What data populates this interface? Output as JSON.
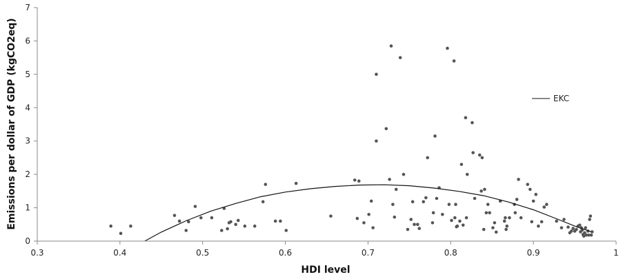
{
  "chart_data": {
    "type": "scatter",
    "title": "",
    "xlabel": "HDI level",
    "ylabel": "Emissions per dollar of GDP (kgCO2eq)",
    "xlim": [
      0.3,
      1.0
    ],
    "ylim": [
      0,
      7
    ],
    "xticks": [
      0.3,
      0.4,
      0.5,
      0.6,
      0.7,
      0.8,
      0.9,
      1.0
    ],
    "xtick_labels": [
      "0.3",
      "0.4",
      "0.5",
      "0.6",
      "0.7",
      "0.8",
      "0.9",
      "1"
    ],
    "yticks": [
      0,
      1,
      2,
      3,
      4,
      5,
      6,
      7
    ],
    "ytick_labels": [
      "0",
      "1",
      "2",
      "3",
      "4",
      "5",
      "6",
      "7"
    ],
    "grid": false,
    "legend": {
      "placement": "right",
      "entries": [
        "EKC"
      ]
    },
    "series": [
      {
        "name": "",
        "kind": "scatter",
        "color": "#555555",
        "points": [
          [
            0.389,
            0.45
          ],
          [
            0.401,
            0.23
          ],
          [
            0.413,
            0.45
          ],
          [
            0.466,
            0.77
          ],
          [
            0.472,
            0.6
          ],
          [
            0.48,
            0.32
          ],
          [
            0.483,
            0.58
          ],
          [
            0.491,
            1.04
          ],
          [
            0.498,
            0.7
          ],
          [
            0.511,
            0.7
          ],
          [
            0.523,
            0.32
          ],
          [
            0.526,
            0.98
          ],
          [
            0.53,
            0.37
          ],
          [
            0.532,
            0.55
          ],
          [
            0.534,
            0.58
          ],
          [
            0.54,
            0.5
          ],
          [
            0.543,
            0.62
          ],
          [
            0.551,
            0.45
          ],
          [
            0.563,
            0.45
          ],
          [
            0.573,
            1.18
          ],
          [
            0.576,
            1.7
          ],
          [
            0.588,
            0.6
          ],
          [
            0.594,
            0.6
          ],
          [
            0.601,
            0.32
          ],
          [
            0.613,
            1.73
          ],
          [
            0.655,
            0.75
          ],
          [
            0.684,
            1.83
          ],
          [
            0.687,
            0.68
          ],
          [
            0.689,
            1.8
          ],
          [
            0.695,
            0.55
          ],
          [
            0.701,
            0.8
          ],
          [
            0.704,
            1.2
          ],
          [
            0.706,
            0.4
          ],
          [
            0.71,
            5.0
          ],
          [
            0.71,
            3.0
          ],
          [
            0.722,
            3.37
          ],
          [
            0.726,
            1.85
          ],
          [
            0.728,
            5.85
          ],
          [
            0.73,
            1.1
          ],
          [
            0.732,
            0.72
          ],
          [
            0.734,
            1.55
          ],
          [
            0.739,
            5.5
          ],
          [
            0.743,
            2.0
          ],
          [
            0.748,
            0.35
          ],
          [
            0.752,
            0.65
          ],
          [
            0.754,
            1.18
          ],
          [
            0.756,
            0.5
          ],
          [
            0.76,
            0.5
          ],
          [
            0.762,
            0.38
          ],
          [
            0.767,
            1.18
          ],
          [
            0.77,
            1.3
          ],
          [
            0.772,
            2.5
          ],
          [
            0.778,
            0.55
          ],
          [
            0.779,
            0.85
          ],
          [
            0.781,
            3.15
          ],
          [
            0.783,
            1.28
          ],
          [
            0.786,
            1.6
          ],
          [
            0.79,
            0.8
          ],
          [
            0.796,
            5.78
          ],
          [
            0.798,
            1.1
          ],
          [
            0.801,
            0.62
          ],
          [
            0.804,
            5.4
          ],
          [
            0.805,
            0.7
          ],
          [
            0.806,
            1.1
          ],
          [
            0.807,
            0.43
          ],
          [
            0.808,
            0.45
          ],
          [
            0.811,
            0.6
          ],
          [
            0.813,
            2.3
          ],
          [
            0.815,
            0.48
          ],
          [
            0.818,
            3.7
          ],
          [
            0.819,
            0.7
          ],
          [
            0.82,
            2.0
          ],
          [
            0.826,
            3.55
          ],
          [
            0.827,
            2.65
          ],
          [
            0.829,
            1.28
          ],
          [
            0.835,
            2.58
          ],
          [
            0.837,
            1.5
          ],
          [
            0.838,
            2.5
          ],
          [
            0.84,
            0.35
          ],
          [
            0.841,
            1.55
          ],
          [
            0.843,
            0.85
          ],
          [
            0.845,
            1.1
          ],
          [
            0.847,
            0.85
          ],
          [
            0.851,
            0.4
          ],
          [
            0.853,
            0.55
          ],
          [
            0.855,
            0.27
          ],
          [
            0.86,
            1.2
          ],
          [
            0.865,
            0.6
          ],
          [
            0.866,
            0.7
          ],
          [
            0.867,
            0.35
          ],
          [
            0.868,
            0.45
          ],
          [
            0.871,
            0.7
          ],
          [
            0.877,
            1.1
          ],
          [
            0.878,
            0.85
          ],
          [
            0.88,
            1.25
          ],
          [
            0.882,
            1.85
          ],
          [
            0.885,
            0.7
          ],
          [
            0.893,
            1.7
          ],
          [
            0.896,
            1.55
          ],
          [
            0.898,
            0.58
          ],
          [
            0.9,
            1.2
          ],
          [
            0.903,
            1.4
          ],
          [
            0.906,
            0.45
          ],
          [
            0.91,
            0.58
          ],
          [
            0.913,
            1.02
          ],
          [
            0.916,
            1.1
          ],
          [
            0.928,
            0.6
          ],
          [
            0.934,
            0.4
          ],
          [
            0.937,
            0.65
          ],
          [
            0.942,
            0.42
          ],
          [
            0.944,
            0.25
          ],
          [
            0.946,
            0.3
          ],
          [
            0.948,
            0.38
          ],
          [
            0.95,
            0.3
          ],
          [
            0.952,
            0.35
          ],
          [
            0.954,
            0.45
          ],
          [
            0.956,
            0.48
          ],
          [
            0.957,
            0.28
          ],
          [
            0.958,
            0.4
          ],
          [
            0.959,
            0.33
          ],
          [
            0.96,
            0.2
          ],
          [
            0.961,
            0.15
          ],
          [
            0.962,
            0.25
          ],
          [
            0.963,
            0.4
          ],
          [
            0.964,
            0.18
          ],
          [
            0.966,
            0.3
          ],
          [
            0.967,
            0.18
          ],
          [
            0.968,
            0.65
          ],
          [
            0.969,
            0.75
          ],
          [
            0.97,
            0.18
          ],
          [
            0.971,
            0.28
          ]
        ]
      },
      {
        "name": "EKC",
        "kind": "line",
        "color": "#111111",
        "points": [
          [
            0.43,
            0.0
          ],
          [
            0.45,
            0.27
          ],
          [
            0.48,
            0.61
          ],
          [
            0.51,
            0.9
          ],
          [
            0.54,
            1.13
          ],
          [
            0.57,
            1.33
          ],
          [
            0.6,
            1.47
          ],
          [
            0.63,
            1.57
          ],
          [
            0.66,
            1.64
          ],
          [
            0.69,
            1.68
          ],
          [
            0.72,
            1.69
          ],
          [
            0.75,
            1.66
          ],
          [
            0.78,
            1.59
          ],
          [
            0.81,
            1.49
          ],
          [
            0.84,
            1.36
          ],
          [
            0.87,
            1.17
          ],
          [
            0.9,
            0.94
          ],
          [
            0.93,
            0.65
          ],
          [
            0.95,
            0.45
          ],
          [
            0.97,
            0.28
          ]
        ]
      }
    ]
  }
}
